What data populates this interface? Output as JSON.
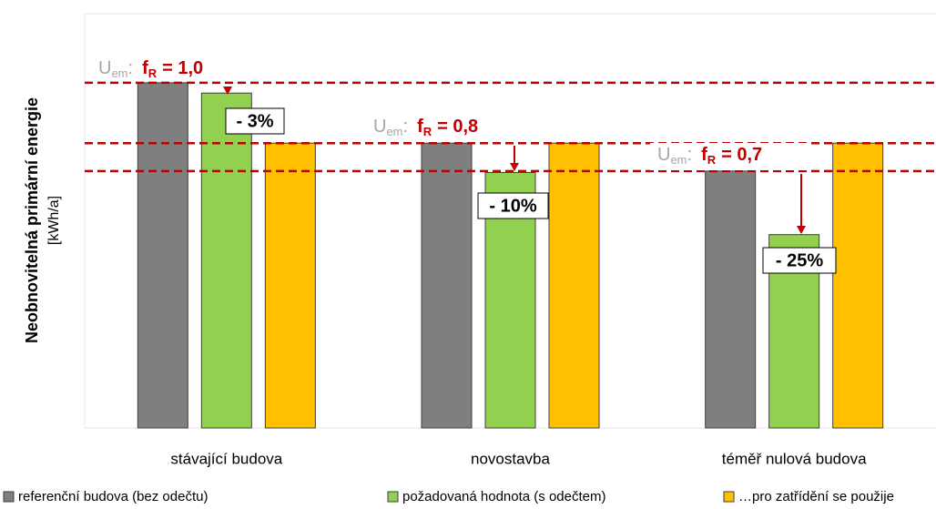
{
  "chart_data": {
    "type": "bar",
    "y_label": "Neobnovitelná primární energie",
    "y_unit": "[kWh/a]",
    "categories": [
      "stávající budova",
      "novostavba",
      "téměř nulová budova"
    ],
    "ylim": [
      0,
      120
    ],
    "series": [
      {
        "name": "referenční budova (bez odečtu)",
        "color": "#7f7f7f",
        "values": [
          100,
          82.5,
          74.4
        ]
      },
      {
        "name": "požadovaná hodnota (s odečtem)",
        "color": "#92d050",
        "values": [
          97,
          74,
          56
        ]
      },
      {
        "name": "…pro zatřídění se použije",
        "color": "#ffc000",
        "values": [
          82.5,
          82.5,
          82.5
        ]
      }
    ],
    "reference_lines": {
      "color": "#c00000",
      "values": [
        100,
        82.5,
        74.4
      ]
    },
    "annotations": [
      {
        "u": "U",
        "u_sub": "em",
        "sep": ":",
        "f": "f",
        "f_sub": "R",
        "ratio": "= 1,0",
        "change": "- 3%"
      },
      {
        "u": "U",
        "u_sub": "em",
        "sep": ":",
        "f": "f",
        "f_sub": "R",
        "ratio": "= 0,8",
        "change": "- 10%"
      },
      {
        "u": "U",
        "u_sub": "em",
        "sep": ":",
        "f": "f",
        "f_sub": "R",
        "ratio": "= 0,7",
        "change": "- 25%"
      }
    ]
  }
}
